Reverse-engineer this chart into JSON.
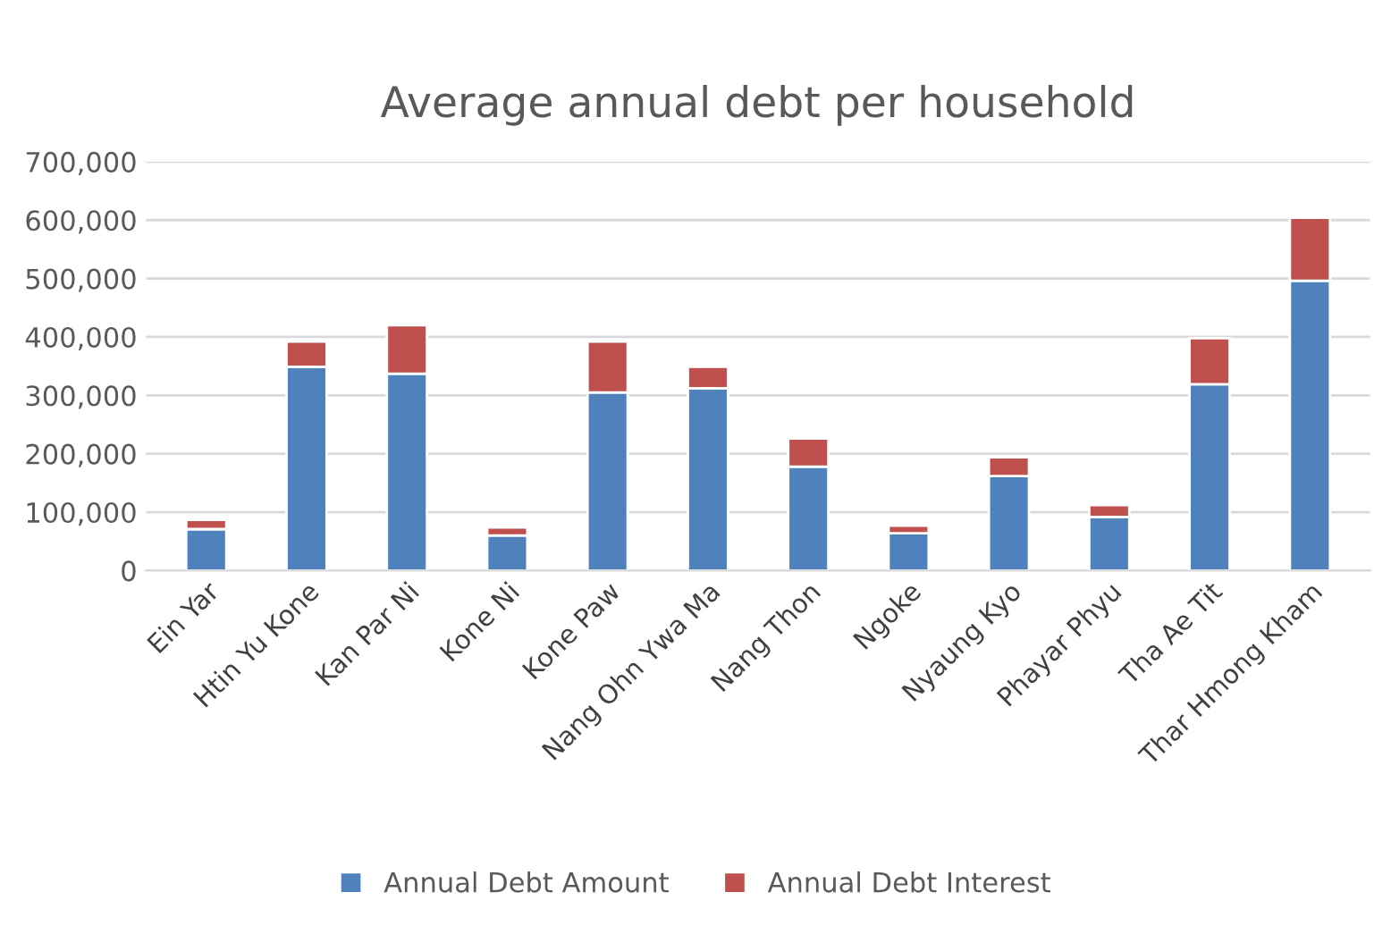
{
  "chart_data": {
    "type": "bar",
    "title": "Average annual debt per household",
    "stacked": true,
    "categories": [
      "Ein Yar",
      "Htin Yu Kone",
      "Kan Par Ni",
      "Kone Ni",
      "Kone Paw",
      "Nang Ohn Ywa Ma",
      "Nang Thon",
      "Ngoke",
      "Nyaung Kyo",
      "Phayar Phyu",
      "Tha Ae Tit",
      "Thar Hmong Kham"
    ],
    "series": [
      {
        "name": "Annual Debt Amount",
        "color": "#4f81bd",
        "values": [
          71000,
          349000,
          337000,
          60000,
          305000,
          312000,
          178000,
          64000,
          162000,
          92000,
          319000,
          496000
        ]
      },
      {
        "name": "Annual Debt Interest",
        "color": "#c0504d",
        "values": [
          16000,
          43000,
          83000,
          14000,
          87000,
          37000,
          48000,
          13000,
          32000,
          20000,
          79000,
          108000
        ]
      }
    ],
    "ylim": [
      0,
      700000
    ],
    "yticks": [
      0,
      {
        "value": 100000,
        "label": "100,000"
      },
      {
        "value": 200000,
        "label": "200,000"
      },
      {
        "value": 300000,
        "label": "300,000"
      },
      {
        "value": 400000,
        "label": "400,000"
      },
      {
        "value": 500000,
        "label": "500,000"
      },
      {
        "value": 600000,
        "label": "600,000"
      },
      {
        "value": 700000,
        "label": "700,000"
      }
    ],
    "grid": "y",
    "legend": "bottom"
  }
}
